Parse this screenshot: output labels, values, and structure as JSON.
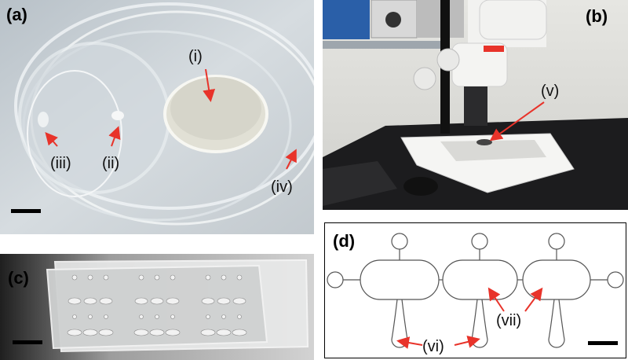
{
  "panels": {
    "a": {
      "label": "(a)",
      "annotations": {
        "i": "(i)",
        "ii": "(ii)",
        "iii": "(iii)",
        "iv": "(iv)"
      }
    },
    "b": {
      "label": "(b)",
      "annotations": {
        "v": "(v)"
      }
    },
    "c": {
      "label": "(c)"
    },
    "d": {
      "label": "(d)",
      "annotations": {
        "vi": "(vi)",
        "vii": "(vii)"
      }
    }
  },
  "colors": {
    "arrow": "#e8332a",
    "background_a": "#c9d0d6",
    "bench_b": "#1c1c1e",
    "surface_c": "#bdbdbd"
  }
}
